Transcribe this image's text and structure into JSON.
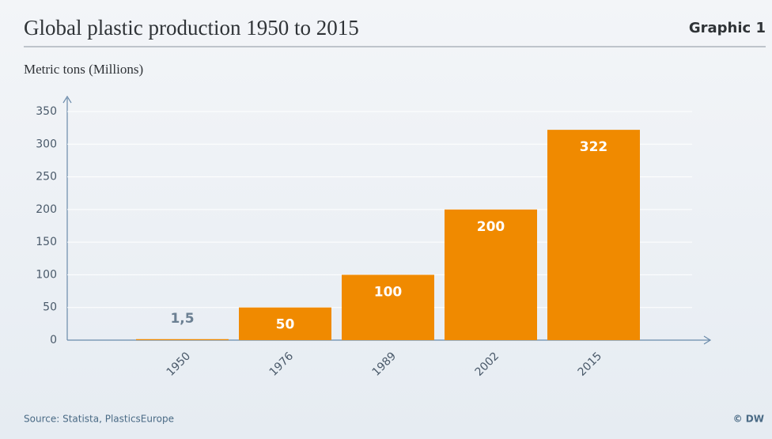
{
  "chart_data": {
    "type": "bar",
    "title": "Global plastic production 1950 to 2015",
    "badge": "Graphic 1",
    "y_label": "Metric tons (Millions)",
    "source": "Source: Statista, PlasticsEurope",
    "credit": "© DW",
    "categories": [
      "1950",
      "1976",
      "1989",
      "2002",
      "2015"
    ],
    "values": [
      1.5,
      50,
      100,
      200,
      322
    ],
    "value_labels": [
      "1,5",
      "50",
      "100",
      "200",
      "322"
    ],
    "color": "#f08a00",
    "ylim": [
      0,
      350
    ],
    "yticks": [
      0,
      50,
      100,
      150,
      200,
      250,
      300,
      350
    ],
    "grid": true
  }
}
